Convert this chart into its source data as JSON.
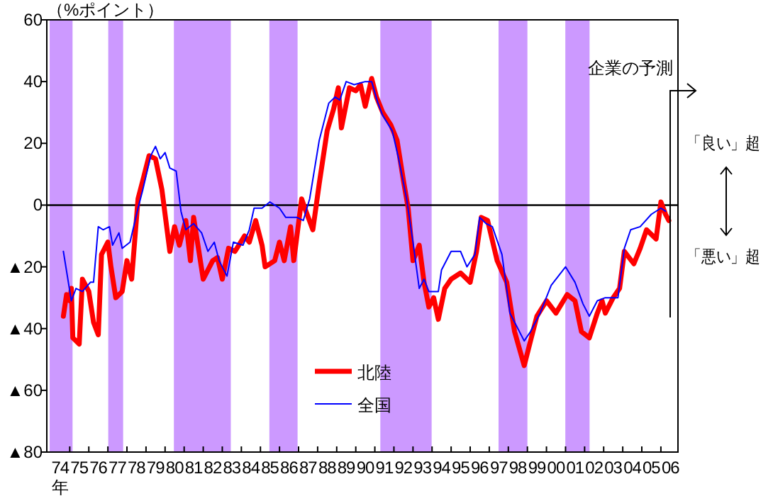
{
  "chart_data": {
    "type": "line",
    "ylabel": "（%ポイント）",
    "xlabel": "年",
    "xlim": [
      "1973-10-19",
      "2006-11-24"
    ],
    "ylim": [
      -80,
      60
    ],
    "yticks": [
      60,
      40,
      20,
      0,
      {
        "value": -20,
        "label": "▲20"
      },
      {
        "value": -40,
        "label": "▲40"
      },
      {
        "value": -60,
        "label": "▲60"
      },
      {
        "value": -80,
        "label": "▲80"
      }
    ],
    "xticks": [
      {
        "value": "1974-07-01",
        "label": "74"
      },
      {
        "value": "1975-07-01",
        "label": "75"
      },
      {
        "value": "1976-07-01",
        "label": "76"
      },
      {
        "value": "1977-07-01",
        "label": "77"
      },
      {
        "value": "1978-07-01",
        "label": "78"
      },
      {
        "value": "1979-07-01",
        "label": "79"
      },
      {
        "value": "1980-07-01",
        "label": "80"
      },
      {
        "value": "1981-07-01",
        "label": "81"
      },
      {
        "value": "1982-07-01",
        "label": "82"
      },
      {
        "value": "1983-07-01",
        "label": "83"
      },
      {
        "value": "1984-07-01",
        "label": "84"
      },
      {
        "value": "1985-07-01",
        "label": "85"
      },
      {
        "value": "1986-07-01",
        "label": "86"
      },
      {
        "value": "1987-07-01",
        "label": "87"
      },
      {
        "value": "1988-07-01",
        "label": "88"
      },
      {
        "value": "1989-07-01",
        "label": "89"
      },
      {
        "value": "1990-07-01",
        "label": "90"
      },
      {
        "value": "1991-07-01",
        "label": "91"
      },
      {
        "value": "1992-07-01",
        "label": "92"
      },
      {
        "value": "1993-07-01",
        "label": "93"
      },
      {
        "value": "1994-07-01",
        "label": "94"
      },
      {
        "value": "1995-07-01",
        "label": "95"
      },
      {
        "value": "1996-07-01",
        "label": "96"
      },
      {
        "value": "1997-07-01",
        "label": "97"
      },
      {
        "value": "1998-07-01",
        "label": "98"
      },
      {
        "value": "1999-07-01",
        "label": "99"
      },
      {
        "value": "2000-07-01",
        "label": "00"
      },
      {
        "value": "2001-07-01",
        "label": "01"
      },
      {
        "value": "2002-07-01",
        "label": "02"
      },
      {
        "value": "2003-07-01",
        "label": "03"
      },
      {
        "value": "2004-07-01",
        "label": "04"
      },
      {
        "value": "2005-07-01",
        "label": "05"
      },
      {
        "value": "2006-07-01",
        "label": "06"
      },
      {
        "value": "1975-01-01",
        "label": null
      },
      {
        "value": "1976-01-01",
        "label": null
      },
      {
        "value": "1977-01-01",
        "label": null
      },
      {
        "value": "1978-01-01",
        "label": null
      },
      {
        "value": "1979-01-01",
        "label": null
      },
      {
        "value": "1980-01-01",
        "label": null
      },
      {
        "value": "1981-01-01",
        "label": null
      },
      {
        "value": "1982-01-01",
        "label": null
      },
      {
        "value": "1983-01-01",
        "label": null
      },
      {
        "value": "1984-01-01",
        "label": null
      },
      {
        "value": "1985-01-01",
        "label": null
      },
      {
        "value": "1986-01-01",
        "label": null
      },
      {
        "value": "1987-01-01",
        "label": null
      },
      {
        "value": "1988-01-01",
        "label": null
      },
      {
        "value": "1989-01-01",
        "label": null
      },
      {
        "value": "1990-01-01",
        "label": null
      },
      {
        "value": "1991-01-01",
        "label": null
      },
      {
        "value": "1992-01-01",
        "label": null
      },
      {
        "value": "1993-01-01",
        "label": null
      },
      {
        "value": "1994-01-01",
        "label": null
      },
      {
        "value": "1995-01-01",
        "label": null
      },
      {
        "value": "1996-01-01",
        "label": null
      },
      {
        "value": "1997-01-01",
        "label": null
      },
      {
        "value": "1998-01-01",
        "label": null
      },
      {
        "value": "1999-01-01",
        "label": null
      },
      {
        "value": "2000-01-01",
        "label": null
      },
      {
        "value": "2001-01-01",
        "label": null
      },
      {
        "value": "2002-01-01",
        "label": null
      },
      {
        "value": "2003-01-01",
        "label": null
      },
      {
        "value": "2004-01-01",
        "label": null
      },
      {
        "value": "2005-01-01",
        "label": null
      },
      {
        "value": "2006-01-01",
        "label": null
      }
    ],
    "series": [
      {
        "name": "北陸",
        "color": "#ff0000",
        "x": [
          "1974-09",
          "1974-11",
          "1975-01",
          "1975-02",
          "1975-03",
          "1975-07",
          "1975-09",
          "1976-01",
          "1976-04",
          "1976-07",
          "1976-09",
          "1977-01",
          "1977-03",
          "1977-06",
          "1977-10",
          "1978-01",
          "1978-04",
          "1978-08",
          "1978-11",
          "1979-03",
          "1979-07",
          "1979-11",
          "1980-04",
          "1980-07",
          "1980-10",
          "1981-02",
          "1981-05",
          "1981-07",
          "1982-01",
          "1982-07",
          "1982-10",
          "1983-01",
          "1983-05",
          "1983-09",
          "1984-03",
          "1984-06",
          "1984-10",
          "1985-02",
          "1985-04",
          "1985-10",
          "1986-01",
          "1986-04",
          "1986-08",
          "1986-10",
          "1987-03",
          "1987-05",
          "1987-10",
          "1988-02",
          "1988-07",
          "1988-11",
          "1989-02",
          "1989-04",
          "1989-09",
          "1990-01",
          "1990-04",
          "1990-07",
          "1990-11",
          "1991-02",
          "1991-06",
          "1991-11",
          "1992-03",
          "1992-07",
          "1992-10",
          "1993-01",
          "1993-05",
          "1993-08",
          "1993-11",
          "1994-02",
          "1994-05",
          "1994-09",
          "1995-01",
          "1995-07",
          "1996-01",
          "1996-05",
          "1996-08",
          "1996-12",
          "1997-06",
          "1997-12",
          "1998-05",
          "1998-11",
          "1999-03",
          "1999-07",
          "2000-01",
          "2000-07",
          "2001-02",
          "2001-07",
          "2001-11",
          "2002-04",
          "2002-09",
          "2002-12",
          "2003-02",
          "2003-07",
          "2003-11",
          "2004-02",
          "2004-05",
          "2004-08",
          "2004-12",
          "2005-04",
          "2005-10",
          "2006-01",
          "2006-04",
          "2006-06"
        ],
        "values": [
          -36,
          -29,
          -31,
          -27,
          -43,
          -45,
          -24,
          -28,
          -38,
          -42,
          -16,
          -12,
          -20,
          -30,
          -28,
          -18,
          -24,
          2,
          8,
          16,
          15,
          5,
          -15,
          -7,
          -13,
          -5,
          -18,
          -4,
          -24,
          -18,
          -17,
          -24,
          -14,
          -15,
          -10,
          -12,
          -5,
          -13,
          -20,
          -18,
          -12,
          -18,
          -7,
          -18,
          2,
          -1,
          -8,
          7,
          24,
          31,
          38,
          25,
          38,
          37,
          39,
          32,
          41,
          35,
          30,
          26,
          21,
          8,
          -1,
          -18,
          -13,
          -25,
          -33,
          -30,
          -37,
          -27,
          -24,
          -22,
          -25,
          -15,
          -4,
          -5,
          -18,
          -25,
          -41,
          -52,
          -44,
          -36,
          -31,
          -35,
          -29,
          -31,
          -41,
          -43,
          -35,
          -31,
          -35,
          -30,
          -27,
          -15,
          -17,
          -19,
          -14,
          -8,
          -11,
          1,
          -3,
          -5
        ]
      },
      {
        "name": "全国",
        "color": "#0000ff",
        "x": [
          "1974-09",
          "1975-02",
          "1975-05",
          "1975-09",
          "1976-02",
          "1976-04",
          "1976-07",
          "1976-10",
          "1977-02",
          "1977-04",
          "1977-08",
          "1977-10",
          "1978-03",
          "1978-08",
          "1978-11",
          "1979-04",
          "1979-07",
          "1979-10",
          "1980-01",
          "1980-04",
          "1980-08",
          "1980-11",
          "1981-02",
          "1981-07",
          "1981-12",
          "1982-04",
          "1982-08",
          "1982-11",
          "1983-04",
          "1983-08",
          "1984-02",
          "1984-06",
          "1984-09",
          "1985-02",
          "1985-07",
          "1986-01",
          "1986-05",
          "1986-12",
          "1987-04",
          "1987-08",
          "1988-02",
          "1988-08",
          "1988-12",
          "1989-03",
          "1989-07",
          "1989-12",
          "1990-07",
          "1990-11",
          "1991-03",
          "1991-06",
          "1991-12",
          "1992-04",
          "1992-09",
          "1993-01",
          "1993-05",
          "1993-08",
          "1993-11",
          "1994-05",
          "1994-07",
          "1995-01",
          "1995-07",
          "1995-11",
          "1996-04",
          "1996-07",
          "1996-11",
          "1997-03",
          "1997-09",
          "1998-02",
          "1998-11",
          "1999-03",
          "1999-09",
          "2000-04",
          "2001-01",
          "2001-07",
          "2001-12",
          "2002-04",
          "2002-09",
          "2003-02",
          "2003-10",
          "2004-02",
          "2004-06",
          "2004-12",
          "2005-07",
          "2006-01",
          "2006-04"
        ],
        "values": [
          -15,
          -31,
          -27,
          -28,
          -25,
          -25,
          -7,
          -8,
          -7,
          -13,
          -9,
          -14,
          -12,
          -1,
          5,
          16,
          19,
          15,
          17,
          12,
          11,
          -2,
          -8,
          -6,
          -9,
          -15,
          -12,
          -18,
          -23,
          -12,
          -13,
          -8,
          -1,
          -1,
          1,
          -1,
          -4,
          -4,
          -5,
          2,
          21,
          33,
          35,
          34,
          40,
          39,
          40,
          40,
          33,
          29,
          24,
          15,
          2,
          -12,
          -27,
          -24,
          -28,
          -28,
          -21,
          -15,
          -15,
          -20,
          -16,
          -4,
          -6,
          -7,
          -16,
          -35,
          -44,
          -41,
          -35,
          -26,
          -20,
          -25,
          -32,
          -36,
          -31,
          -30,
          -30,
          -14,
          -8,
          -7,
          -3,
          -1,
          -2
        ]
      }
    ],
    "ref_lines": [
      {
        "axis": "y",
        "value": 0,
        "color": "#000000"
      }
    ],
    "bands": [
      {
        "axis": "x",
        "from": "1973-12-13",
        "to": "1975-02-24",
        "color": "#cc99ff"
      },
      {
        "axis": "x",
        "from": "1977-01-08",
        "to": "1977-10-20",
        "color": "#cc99ff"
      },
      {
        "axis": "x",
        "from": "1980-06-18",
        "to": "1983-06-13",
        "color": "#cc99ff"
      },
      {
        "axis": "x",
        "from": "1985-06-21",
        "to": "1986-12-13",
        "color": "#cc99ff"
      },
      {
        "axis": "x",
        "from": "1991-04-16",
        "to": "1993-12-24",
        "color": "#cc99ff"
      },
      {
        "axis": "x",
        "from": "1997-06-28",
        "to": "1999-01-01",
        "color": "#cc99ff"
      },
      {
        "axis": "x",
        "from": "2000-12-28",
        "to": "2002-04-06",
        "color": "#cc99ff"
      }
    ],
    "annotations": [
      "企業の予測",
      "「良い」超",
      "「悪い」超"
    ],
    "legend": "bottom"
  }
}
